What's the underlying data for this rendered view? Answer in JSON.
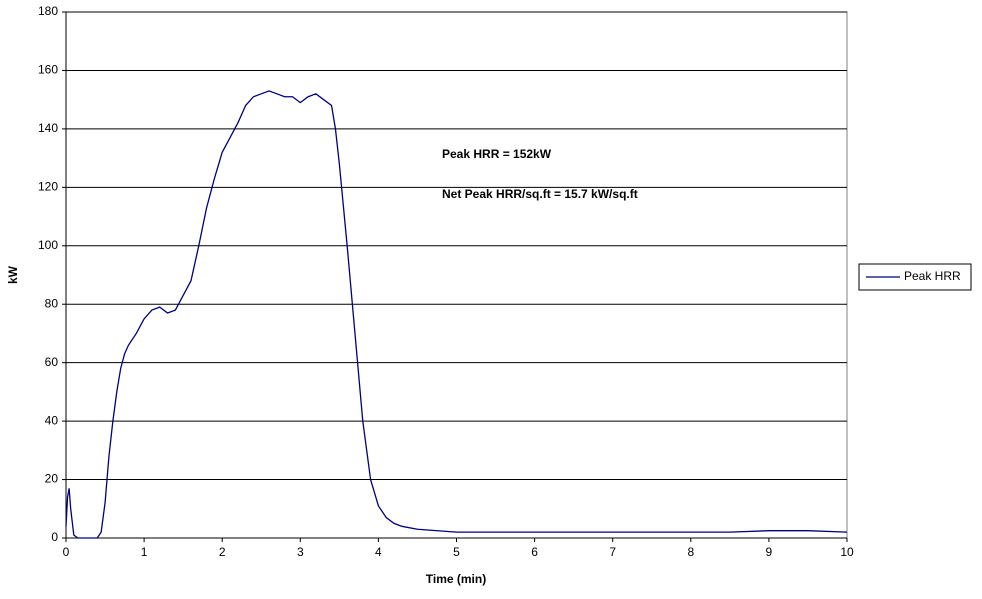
{
  "chart_data": {
    "type": "line",
    "x_label": "Time (min)",
    "y_label": "kW",
    "annotations": [
      "Peak HRR = 152kW",
      "Net Peak HRR/sq.ft = 15.7 kW/sq.ft"
    ],
    "x": [
      0,
      0.02,
      0.04,
      0.06,
      0.1,
      0.15,
      0.3,
      0.4,
      0.45,
      0.5,
      0.55,
      0.6,
      0.65,
      0.7,
      0.75,
      0.8,
      0.9,
      1.0,
      1.1,
      1.2,
      1.3,
      1.4,
      1.5,
      1.6,
      1.7,
      1.8,
      1.9,
      2.0,
      2.1,
      2.2,
      2.3,
      2.4,
      2.5,
      2.6,
      2.7,
      2.8,
      2.9,
      3.0,
      3.1,
      3.2,
      3.3,
      3.4,
      3.45,
      3.5,
      3.6,
      3.7,
      3.8,
      3.9,
      4.0,
      4.1,
      4.2,
      4.3,
      4.5,
      5,
      5.5,
      6,
      6.5,
      7,
      7.5,
      8,
      8.5,
      9,
      9.5,
      10
    ],
    "series": [
      {
        "name": "Peak HRR",
        "color": "#000080",
        "values": [
          4,
          14,
          17,
          10,
          1,
          0,
          0,
          0,
          2,
          12,
          28,
          40,
          50,
          58,
          63,
          66,
          70,
          75,
          78,
          79,
          77,
          78,
          83,
          88,
          100,
          113,
          123,
          132,
          137,
          142,
          148,
          151,
          152,
          153,
          152,
          151,
          151,
          149,
          151,
          152,
          150,
          148,
          140,
          128,
          100,
          70,
          40,
          20,
          11,
          7,
          5,
          4,
          3,
          2,
          2,
          2,
          2,
          2,
          2,
          2,
          2,
          2.5,
          2.5,
          2
        ]
      }
    ],
    "xlim": [
      0,
      10
    ],
    "xticks": [
      0,
      1,
      2,
      3,
      4,
      5,
      6,
      7,
      8,
      9,
      10
    ],
    "ylim": [
      0,
      180
    ],
    "yticks": [
      0,
      20,
      40,
      60,
      80,
      100,
      120,
      140,
      160,
      180
    ],
    "grid": true,
    "legend": "right"
  }
}
